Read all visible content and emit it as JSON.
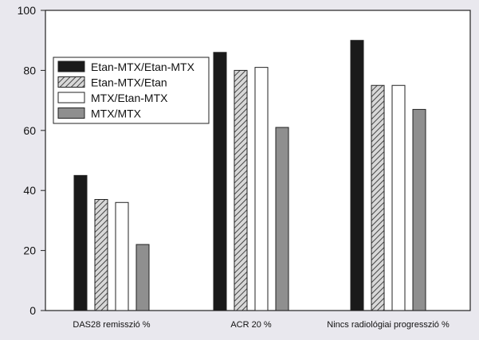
{
  "chart_data": {
    "type": "bar",
    "categories": [
      "DAS28 remisszió  %",
      "ACR 20 %",
      "Nincs radiológiai progresszió %"
    ],
    "series": [
      {
        "name": "Etan-MTX/Etan-MTX",
        "values": [
          45,
          86,
          90
        ],
        "fill": "#1a1a1a",
        "pattern": "solid"
      },
      {
        "name": "Etan-MTX/Etan",
        "values": [
          37,
          80,
          75
        ],
        "fill": "#9a9a9a",
        "pattern": "hatch"
      },
      {
        "name": "MTX/Etan-MTX",
        "values": [
          36,
          81,
          75
        ],
        "fill": "#ffffff",
        "pattern": "solid"
      },
      {
        "name": "MTX/MTX",
        "values": [
          22,
          61,
          67
        ],
        "fill": "#8f8f8f",
        "pattern": "solid"
      }
    ],
    "yticks": [
      0,
      20,
      40,
      60,
      80,
      100
    ],
    "ylim": [
      0,
      100
    ],
    "grid": false,
    "legend_position": "top-left",
    "background": "#e9e8ee",
    "plot_background": "#ffffff"
  }
}
